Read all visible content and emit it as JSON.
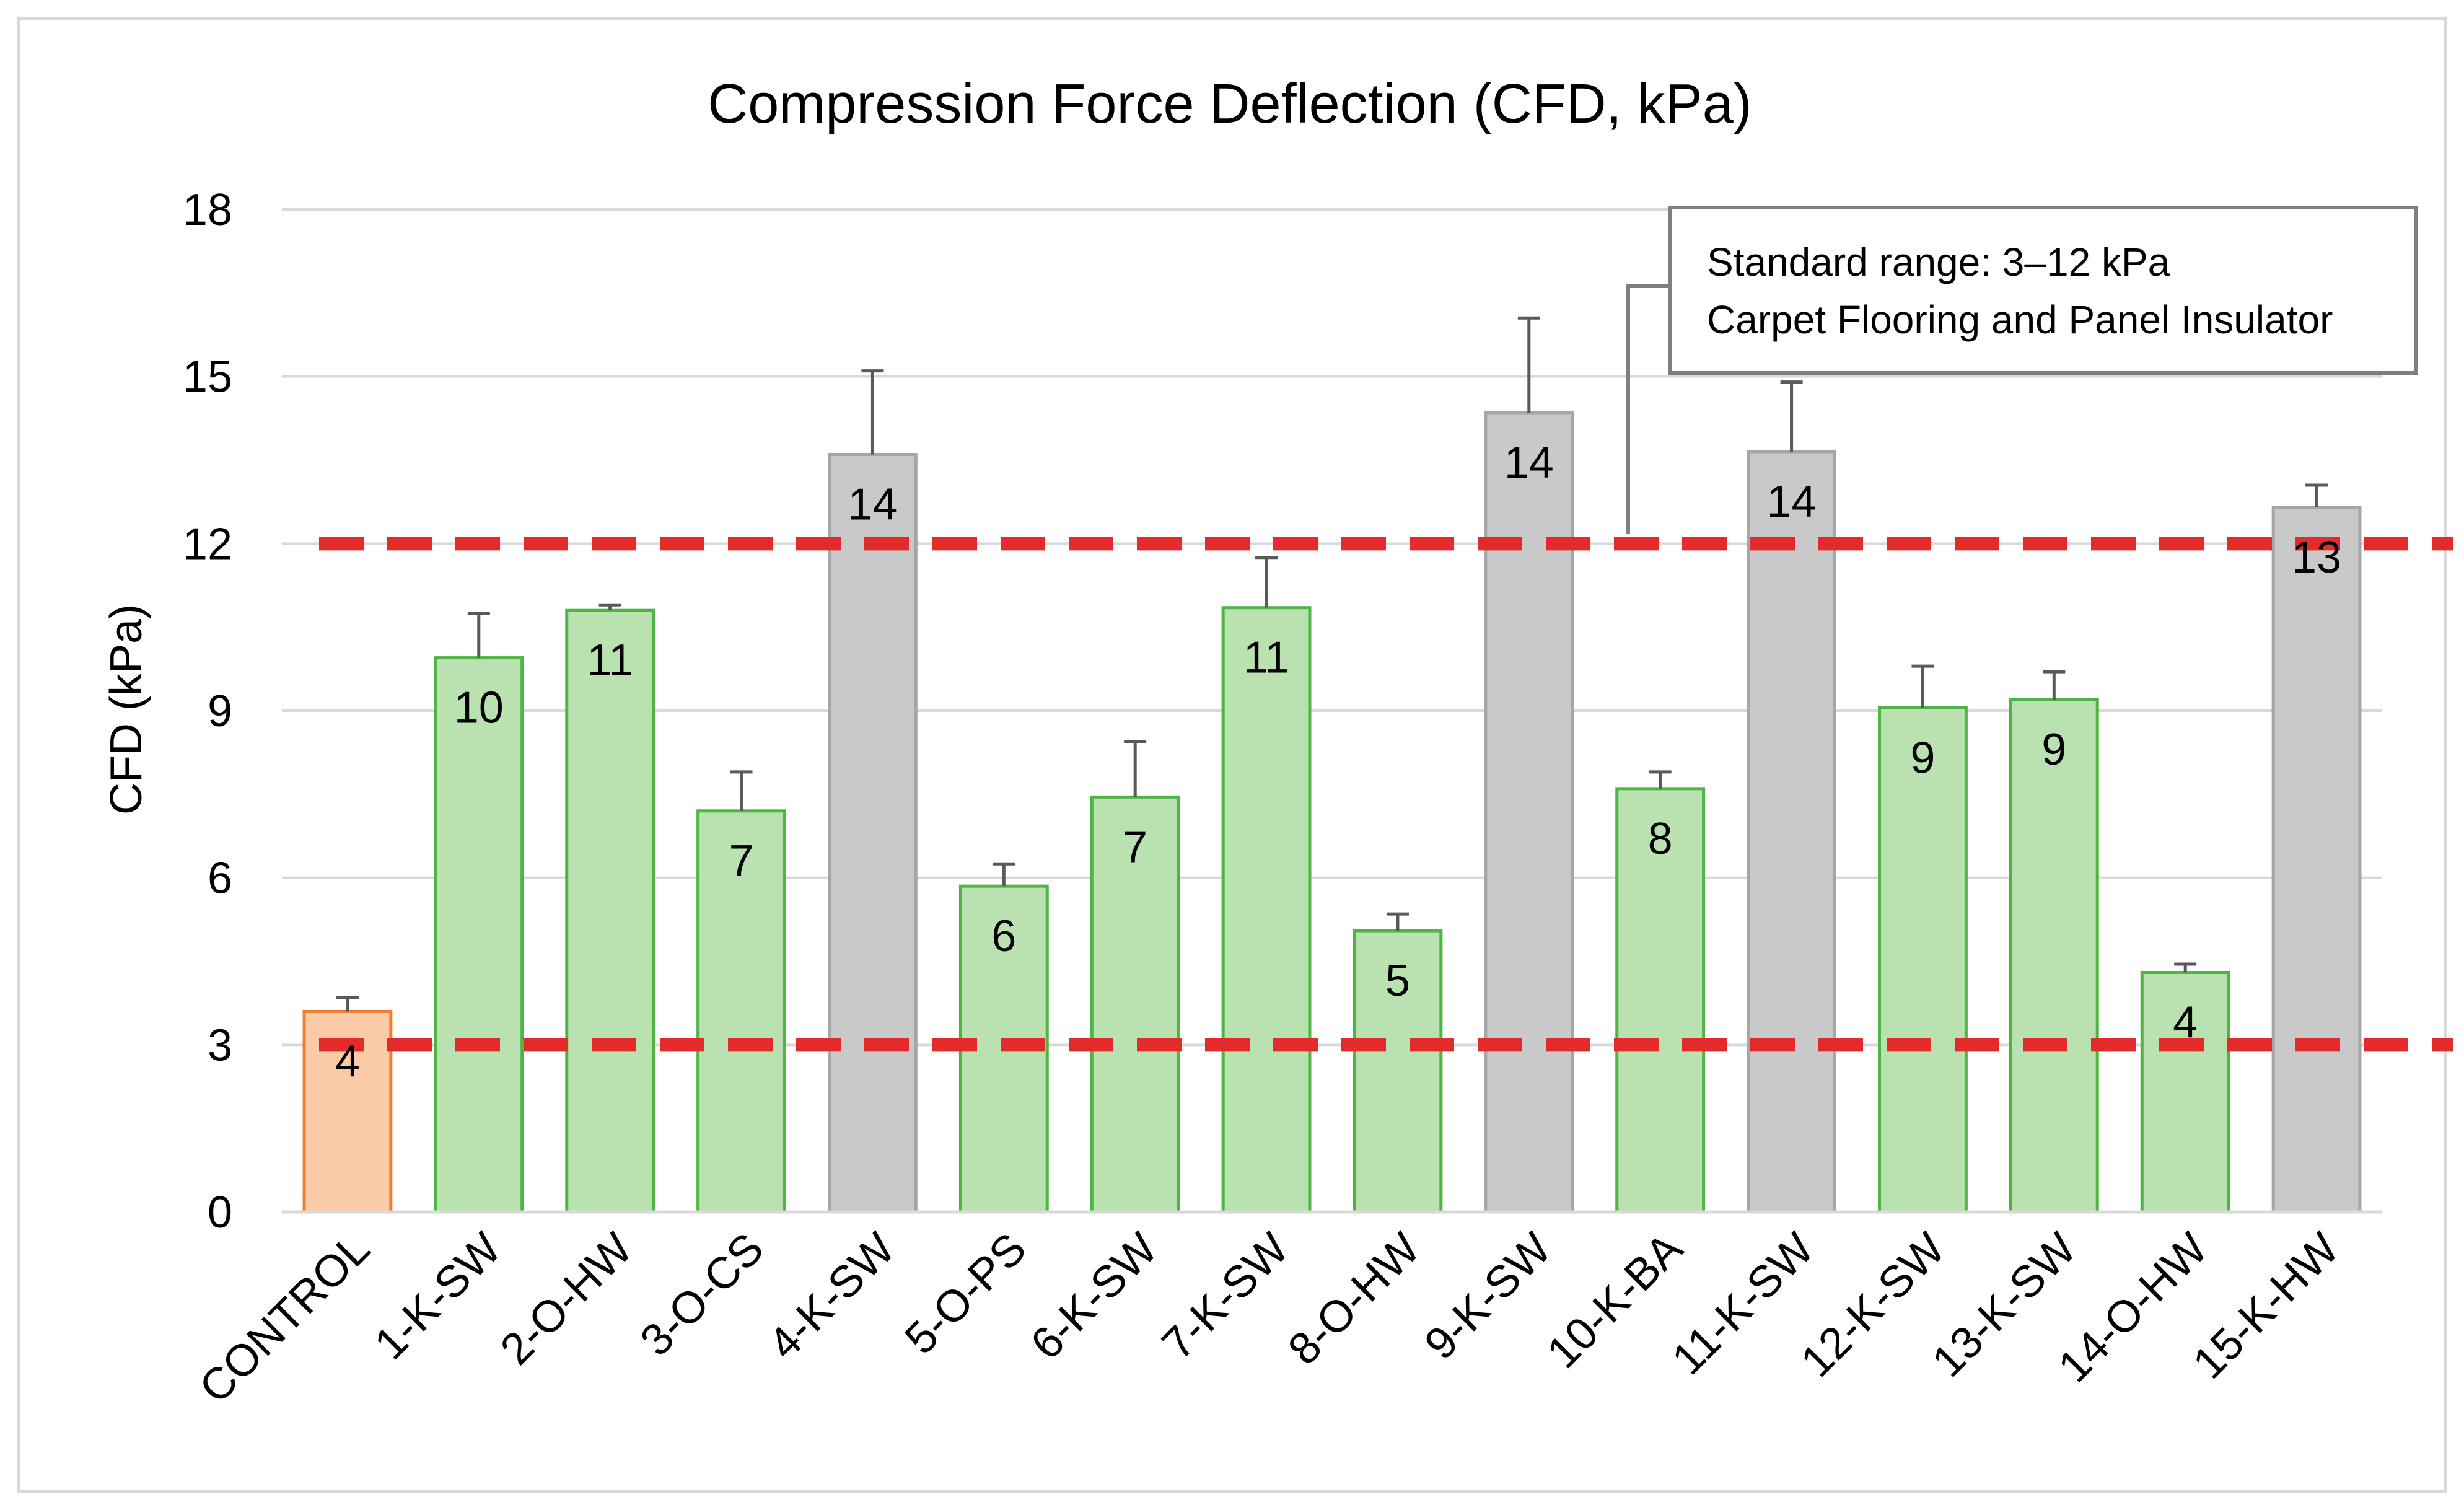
{
  "chart_data": {
    "type": "bar",
    "title": "Compression Force Deflection (CFD, kPa)",
    "xlabel": "",
    "ylabel": "CFD (kPa)",
    "ylim": [
      0,
      18
    ],
    "yticks": [
      0,
      3,
      6,
      9,
      12,
      15,
      18
    ],
    "grid": true,
    "categories": [
      "CONTROL",
      "1-K-SW",
      "2-O-HW",
      "3-O-CS",
      "4-K-SW",
      "5-O-PS",
      "6-K-SW",
      "7-K-SW",
      "8-O-HW",
      "9-K-SW",
      "10-K-BA",
      "11-K-SW",
      "12-K-SW",
      "13-K-SW",
      "14-O-HW",
      "15-K-HW"
    ],
    "values": [
      3.6,
      9.95,
      10.8,
      7.2,
      13.6,
      5.85,
      7.45,
      10.85,
      5.05,
      14.35,
      7.6,
      13.65,
      9.05,
      9.2,
      4.3,
      12.65
    ],
    "errors": [
      0.25,
      0.8,
      0.1,
      0.7,
      1.5,
      0.4,
      1.0,
      0.9,
      0.3,
      1.7,
      0.3,
      1.25,
      0.75,
      0.5,
      0.15,
      0.4
    ],
    "data_labels": [
      "4",
      "10",
      "11",
      "7",
      "14",
      "6",
      "7",
      "11",
      "5",
      "14",
      "8",
      "14",
      "9",
      "9",
      "4",
      "13"
    ],
    "groups": [
      "control",
      "within",
      "within",
      "within",
      "above",
      "within",
      "within",
      "within",
      "within",
      "above",
      "within",
      "above",
      "within",
      "within",
      "within",
      "above"
    ],
    "colors": {
      "control": {
        "fill": "#fbcaa6",
        "stroke": "#ed7d31"
      },
      "within": {
        "fill": "#b9e2b0",
        "stroke": "#4eb443"
      },
      "above": {
        "fill": "#c9c9c9",
        "stroke": "#a6a6a6"
      },
      "threshold": "#e32b2b",
      "error_bar": "#595959",
      "grid": "#d9d9d9",
      "text": "#000000"
    },
    "reference_lines": [
      {
        "value": 12,
        "style": "dashed"
      },
      {
        "value": 3,
        "style": "dashed"
      }
    ],
    "annotation": {
      "line1": "Standard range: 3–12 kPa",
      "line2": "Carpet Flooring and Panel Insulator",
      "points_to": 12
    }
  }
}
